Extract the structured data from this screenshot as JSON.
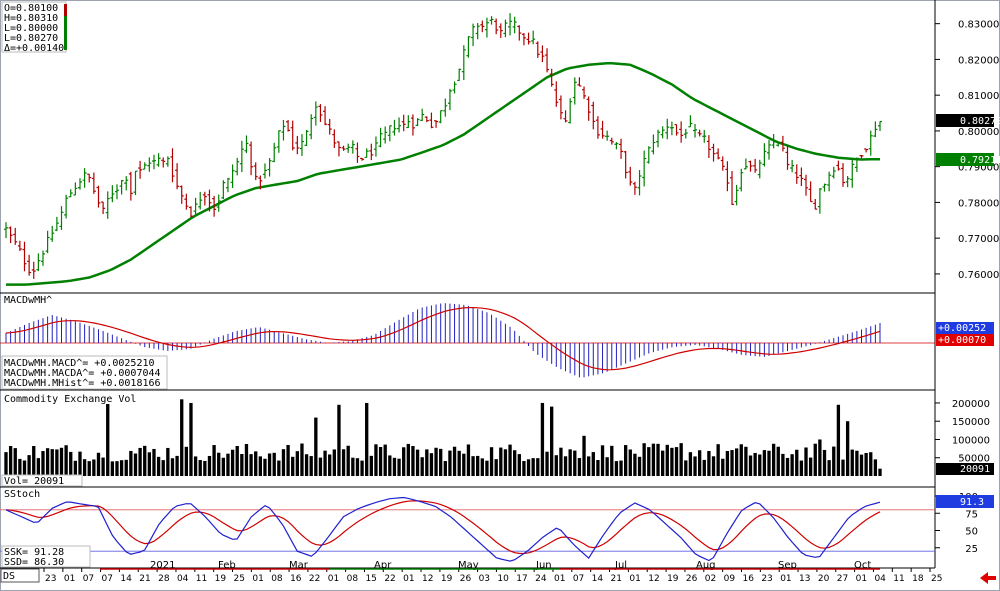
{
  "colors": {
    "up_bar": "#008000",
    "down_bar": "#b00000",
    "moving_average": "#008000",
    "macd_line": "#2020c0",
    "signal_line": "#d00000",
    "volume": "#000000",
    "stoch_k": "#2020d0",
    "stoch_d": "#d00000",
    "last_label_bg": "#000000",
    "ma_label_bg": "#008000",
    "macd_label_bg": "#1e3ce0",
    "signal_label_bg": "#e00000",
    "nav_arrow": "#e00000"
  },
  "price_panel": {
    "ohlc": [
      "O=0.80100",
      "H=0.80310",
      "L=0.80000",
      "L=0.80270",
      "Δ=+0.00140"
    ],
    "last_label": "0.80270",
    "ma_label": "0.79211"
  },
  "macd_panel": {
    "title": "MACDwMH^",
    "lines": [
      "MACDwMH.MACD^= +0.0025210",
      "MACDwMH.MACDA^= +0.0007044",
      "MACDwMH.MHist^= +0.0018166"
    ],
    "macd_label": "+0.00252",
    "signal_label": "+0.00070"
  },
  "volume_panel": {
    "title": "Commodity Exchange Vol",
    "readout": "Vol=      20091",
    "last_label": "20091"
  },
  "stoch_panel": {
    "title": "SStoch",
    "ssk": "SSK=      91.28",
    "ssd": "SSD=      86.30",
    "last_label": "91.3"
  },
  "symbol_box": "DS",
  "chart_data": [
    {
      "type": "ohlc",
      "title": "",
      "x_axis": {
        "months": [
          "2021",
          "Feb",
          "Mar",
          "Apr",
          "May",
          "Jun",
          "Jul",
          "Aug",
          "Sep",
          "Oct"
        ],
        "day_ticks": [
          "23",
          "01",
          "07",
          "07",
          "14",
          "21",
          "28",
          "04",
          "11",
          "19",
          "25",
          "01",
          "08",
          "16",
          "22",
          "01",
          "08",
          "15",
          "22",
          "01",
          "12",
          "19",
          "26",
          "03",
          "10",
          "17",
          "24",
          "01",
          "07",
          "14",
          "21",
          "01",
          "12",
          "19",
          "26",
          "02",
          "09",
          "16",
          "23",
          "01",
          "13",
          "20",
          "27",
          "01",
          "04",
          "11",
          "18",
          "25"
        ]
      },
      "y_axis": {
        "ticks": [
          0.76,
          0.77,
          0.78,
          0.79,
          0.8,
          0.81,
          0.82,
          0.83
        ],
        "tick_labels": [
          "0.76000",
          "0.77000",
          "0.78000",
          "0.79000",
          "0.80000",
          "0.81000",
          "0.82000",
          "0.83000"
        ],
        "range": [
          0.7555,
          0.8355
        ]
      },
      "close_series_approx": [
        0.7725,
        0.77,
        0.7678,
        0.765,
        0.7615,
        0.761,
        0.764,
        0.767,
        0.77,
        0.773,
        0.776,
        0.7805,
        0.783,
        0.785,
        0.787,
        0.788,
        0.784,
        0.78,
        0.777,
        0.782,
        0.7835,
        0.785,
        0.788,
        0.783,
        0.79,
        0.788,
        0.792,
        0.791,
        0.792,
        0.791,
        0.793,
        0.786,
        0.783,
        0.78,
        0.777,
        0.779,
        0.782,
        0.783,
        0.778,
        0.78,
        0.785,
        0.786,
        0.79,
        0.792,
        0.798,
        0.792,
        0.786,
        0.787,
        0.789,
        0.793,
        0.798,
        0.802,
        0.8,
        0.795,
        0.796,
        0.797,
        0.803,
        0.808,
        0.805,
        0.801,
        0.799,
        0.795,
        0.794,
        0.795,
        0.795,
        0.792,
        0.793,
        0.794,
        0.795,
        0.798,
        0.799,
        0.801,
        0.802,
        0.801,
        0.803,
        0.802,
        0.803,
        0.805,
        0.802,
        0.802,
        0.805,
        0.808,
        0.813,
        0.815,
        0.82,
        0.825,
        0.828,
        0.83,
        0.829,
        0.831,
        0.83,
        0.827,
        0.829,
        0.83,
        0.829,
        0.827,
        0.826,
        0.825,
        0.822,
        0.82,
        0.815,
        0.81,
        0.805,
        0.802,
        0.81,
        0.815,
        0.811,
        0.808,
        0.803,
        0.8,
        0.799,
        0.798,
        0.796,
        0.795,
        0.79,
        0.785,
        0.783,
        0.79,
        0.793,
        0.797,
        0.799,
        0.8,
        0.802,
        0.801,
        0.798,
        0.8,
        0.801,
        0.799,
        0.798,
        0.797,
        0.794,
        0.792,
        0.789,
        0.786,
        0.778,
        0.788,
        0.791,
        0.79,
        0.788,
        0.792,
        0.794,
        0.796,
        0.798,
        0.795,
        0.79,
        0.789,
        0.787,
        0.785,
        0.78,
        0.779,
        0.784,
        0.786,
        0.789,
        0.791,
        0.786,
        0.787,
        0.79,
        0.793,
        0.795,
        0.797,
        0.801,
        0.8027
      ],
      "moving_average_approx": [
        0.757,
        0.757,
        0.7575,
        0.758,
        0.759,
        0.761,
        0.764,
        0.768,
        0.772,
        0.776,
        0.779,
        0.782,
        0.784,
        0.785,
        0.786,
        0.788,
        0.789,
        0.79,
        0.791,
        0.792,
        0.794,
        0.796,
        0.799,
        0.803,
        0.807,
        0.811,
        0.815,
        0.8175,
        0.8185,
        0.819,
        0.8185,
        0.816,
        0.813,
        0.809,
        0.806,
        0.803,
        0.8,
        0.797,
        0.795,
        0.7935,
        0.7925,
        0.792,
        0.7921
      ]
    },
    {
      "type": "bar",
      "title": "MACDwMH^",
      "note": "histogram with MACD (blue) and signal (red) lines",
      "last_values": {
        "macd": 0.002521,
        "signal": 0.0007044,
        "histogram": 0.0018166
      }
    },
    {
      "type": "bar",
      "title": "Commodity Exchange Vol",
      "y_axis": {
        "ticks": [
          50000,
          100000,
          150000,
          200000
        ],
        "tick_labels": [
          "50000",
          "100000",
          "150000",
          "200000"
        ],
        "range": [
          0,
          230000
        ]
      },
      "last_value": 20091
    },
    {
      "type": "line",
      "title": "SStoch",
      "y_axis": {
        "ticks": [
          25,
          50,
          75,
          100
        ],
        "tick_labels": [
          "25",
          "50",
          "75",
          "100"
        ],
        "range": [
          0,
          100
        ],
        "overbought": 80,
        "oversold": 20
      },
      "last_values": {
        "SSK": 91.28,
        "SSD": 86.3
      }
    }
  ]
}
